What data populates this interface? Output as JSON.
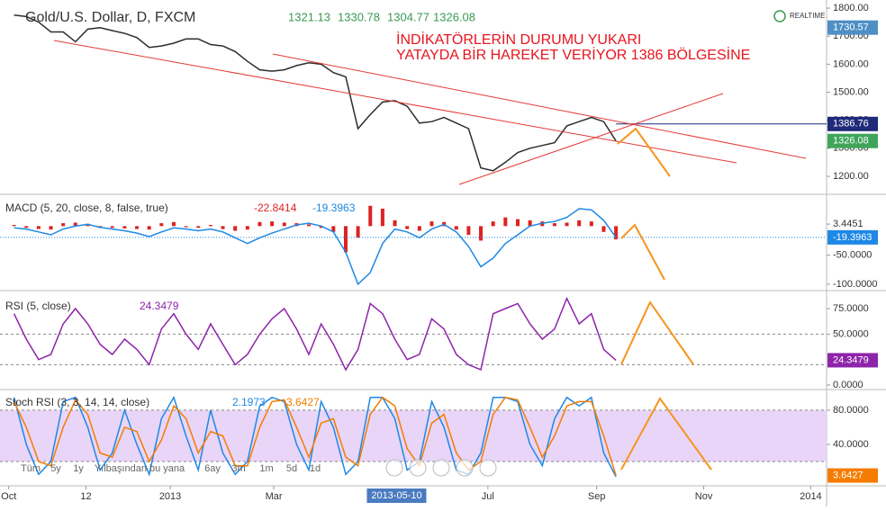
{
  "header": {
    "realtime": "REALTIME",
    "annotation": [
      "İNDİKATÖRLERİN DURUMU YUKARI",
      "YATAYDA BİR HAREKET VERİYOR 1386 BÖLGESİNE"
    ],
    "time_buttons": [
      "Tüm",
      "5y",
      "1y",
      "Yılbaşından bu yana",
      "6ay",
      "3m",
      "1m",
      "5d",
      "1d"
    ]
  },
  "chart_data": [
    {
      "type": "line",
      "title": "Gold/U.S. Dollar, D, FXCM",
      "readouts": [
        1321.13,
        1330.78,
        1304.77,
        1326.08
      ],
      "readout_colors": [
        "#3a9a52",
        "#3a9a52",
        "#3a9a52",
        "#3a9a52"
      ],
      "x": [
        3,
        10,
        17,
        24,
        31,
        38,
        45,
        52,
        59,
        66,
        73,
        80,
        87,
        94,
        101,
        108,
        115,
        122,
        129,
        136,
        143,
        150,
        157,
        164,
        171,
        178,
        185,
        192,
        199,
        206,
        213,
        220,
        227,
        234,
        241,
        248,
        255,
        262,
        269,
        276,
        283,
        290,
        297,
        304,
        311,
        318,
        325,
        332,
        339,
        346
      ],
      "values": [
        1775,
        1770,
        1750,
        1715,
        1715,
        1680,
        1725,
        1730,
        1720,
        1710,
        1695,
        1660,
        1665,
        1675,
        1690,
        1690,
        1670,
        1665,
        1645,
        1610,
        1580,
        1575,
        1580,
        1595,
        1605,
        1600,
        1570,
        1555,
        1370,
        1420,
        1465,
        1470,
        1450,
        1390,
        1395,
        1410,
        1390,
        1370,
        1230,
        1220,
        1250,
        1285,
        1300,
        1310,
        1320,
        1380,
        1395,
        1410,
        1395,
        1326.08
      ],
      "color": "#2d2d2d",
      "price_labels": [
        1730.57,
        1386.76,
        1326.08
      ],
      "price_label_colors": [
        "#4e8fc5",
        "#1f2a7a",
        "#3fa55a"
      ],
      "xlim": [
        -5,
        466
      ],
      "ylim": [
        1139,
        1829
      ],
      "yticks": [
        {
          "value": 1200,
          "label": "1200.00"
        },
        {
          "value": 1300,
          "label": "1300.00"
        },
        {
          "value": 1400,
          "label": "1400.00"
        },
        {
          "value": 1500,
          "label": "1500.00"
        },
        {
          "value": 1600,
          "label": "1600.00"
        },
        {
          "value": 1700,
          "label": "1700.00"
        },
        {
          "value": 1800,
          "label": "1800.00"
        }
      ]
    },
    {
      "type": "line",
      "title": "MACD (5, 20, close, 8, false, true)",
      "readouts": [
        -22.8414,
        -19.3963
      ],
      "readout_colors": [
        "#d22",
        "#1e88e5"
      ],
      "x": [
        3,
        10,
        17,
        24,
        31,
        38,
        45,
        52,
        59,
        66,
        73,
        80,
        87,
        94,
        101,
        108,
        115,
        122,
        129,
        136,
        143,
        150,
        157,
        164,
        171,
        178,
        185,
        192,
        199,
        206,
        213,
        220,
        227,
        234,
        241,
        248,
        255,
        262,
        269,
        276,
        283,
        290,
        297,
        304,
        311,
        318,
        325,
        332,
        339,
        346
      ],
      "histogram": [
        2,
        -3,
        -5,
        -6,
        5,
        6,
        4,
        -3,
        -3,
        -4,
        -5,
        -6,
        5,
        7,
        -2,
        -3,
        2,
        -5,
        -8,
        -6,
        7,
        8,
        6,
        5,
        3,
        -3,
        -10,
        -45,
        -20,
        35,
        30,
        10,
        -5,
        -8,
        8,
        7,
        -6,
        -15,
        -25,
        8,
        15,
        12,
        10,
        8,
        5,
        6,
        10,
        8,
        -10,
        -22.8414
      ],
      "histogram_color": "#d22",
      "values": [
        -3,
        -5,
        -10,
        -15,
        -5,
        0,
        3,
        -2,
        -5,
        -8,
        -12,
        -18,
        -10,
        -3,
        -5,
        -8,
        -5,
        -10,
        -20,
        -30,
        -20,
        -12,
        -5,
        2,
        5,
        0,
        -10,
        -45,
        -100,
        -80,
        -30,
        -5,
        -10,
        -20,
        -5,
        3,
        -10,
        -35,
        -70,
        -55,
        -30,
        -15,
        0,
        5,
        8,
        15,
        30,
        28,
        10,
        -19.3963
      ],
      "color": "#1e88e5",
      "xlim": [
        -5,
        466
      ],
      "ylim": [
        -109.4,
        51.6
      ],
      "yticks": [
        3.4451,
        {
          "value": -50,
          "label": "-50.0000"
        },
        {
          "value": -100,
          "label": "-100.0000"
        }
      ]
    },
    {
      "type": "line",
      "title": "RSI (5, close)",
      "readouts": [
        24.3479
      ],
      "readout_colors": [
        "#8e24aa"
      ],
      "x": [
        3,
        10,
        17,
        24,
        31,
        38,
        45,
        52,
        59,
        66,
        73,
        80,
        87,
        94,
        101,
        108,
        115,
        122,
        129,
        136,
        143,
        150,
        157,
        164,
        171,
        178,
        185,
        192,
        199,
        206,
        213,
        220,
        227,
        234,
        241,
        248,
        255,
        262,
        269,
        276,
        283,
        290,
        297,
        304,
        311,
        318,
        325,
        332,
        339,
        346
      ],
      "values": [
        70,
        45,
        25,
        30,
        60,
        75,
        60,
        40,
        30,
        45,
        35,
        20,
        55,
        70,
        50,
        35,
        60,
        40,
        20,
        30,
        50,
        65,
        75,
        55,
        30,
        60,
        40,
        15,
        35,
        80,
        70,
        45,
        25,
        30,
        65,
        55,
        30,
        20,
        15,
        70,
        75,
        80,
        60,
        45,
        55,
        85,
        60,
        70,
        35,
        24.3479
      ],
      "color": "#8e24aa",
      "bands": [
        20,
        50
      ],
      "xlim": [
        -5,
        466
      ],
      "ylim": [
        -3.5,
        90.9
      ],
      "yticks": [
        {
          "value": 75,
          "label": "75.0000"
        },
        {
          "value": 50,
          "label": "50.0000"
        },
        {
          "value": 0,
          "label": "0.0000"
        }
      ]
    },
    {
      "type": "line",
      "title": "Stoch RSI (3, 3, 14, 14, close)",
      "readouts": [
        2.1973,
        3.6427
      ],
      "readout_colors": [
        "#1e88e5",
        "#f57c00"
      ],
      "x": [
        3,
        10,
        17,
        24,
        31,
        38,
        45,
        52,
        59,
        66,
        73,
        80,
        87,
        94,
        101,
        108,
        115,
        122,
        129,
        136,
        143,
        150,
        157,
        164,
        171,
        178,
        185,
        192,
        199,
        206,
        213,
        220,
        227,
        234,
        241,
        248,
        255,
        262,
        269,
        276,
        283,
        290,
        297,
        304,
        311,
        318,
        325,
        332,
        339,
        346
      ],
      "series": [
        {
          "color": "#1e88e5",
          "values": [
            95,
            40,
            5,
            20,
            90,
            95,
            60,
            10,
            30,
            80,
            40,
            5,
            70,
            95,
            50,
            10,
            80,
            30,
            5,
            20,
            85,
            95,
            90,
            40,
            10,
            90,
            60,
            5,
            20,
            95,
            95,
            70,
            10,
            20,
            90,
            60,
            10,
            5,
            30,
            95,
            95,
            90,
            40,
            15,
            70,
            95,
            85,
            95,
            30,
            2.1973
          ]
        },
        {
          "color": "#f57c00",
          "values": [
            90,
            60,
            20,
            15,
            60,
            92,
            75,
            30,
            25,
            60,
            55,
            20,
            45,
            85,
            70,
            30,
            55,
            50,
            15,
            15,
            60,
            90,
            92,
            60,
            25,
            65,
            70,
            25,
            15,
            75,
            95,
            85,
            35,
            15,
            65,
            75,
            30,
            10,
            20,
            75,
            95,
            92,
            60,
            25,
            50,
            85,
            90,
            90,
            50,
            3.6427
          ]
        }
      ],
      "bands": [
        20,
        80
      ],
      "band_fill": "#e9d5f7",
      "xlim": [
        -5,
        466
      ],
      "ylim": [
        -8.4,
        102
      ],
      "yticks": [
        {
          "value": 80,
          "label": "80.0000"
        },
        {
          "value": 40,
          "label": "40.0000"
        }
      ],
      "xticks": [
        {
          "value": 0,
          "label": "Oct"
        },
        {
          "value": 44,
          "label": "12"
        },
        {
          "value": 92,
          "label": "2013"
        },
        {
          "value": 151,
          "label": "Mar"
        },
        {
          "value": 273,
          "label": "Jul"
        },
        {
          "value": 335,
          "label": "Sep"
        },
        {
          "value": 396,
          "label": "Nov"
        },
        {
          "value": 457,
          "label": "2014"
        }
      ],
      "crosshair_x": {
        "value": 221,
        "label": "2013-05-10"
      }
    }
  ]
}
